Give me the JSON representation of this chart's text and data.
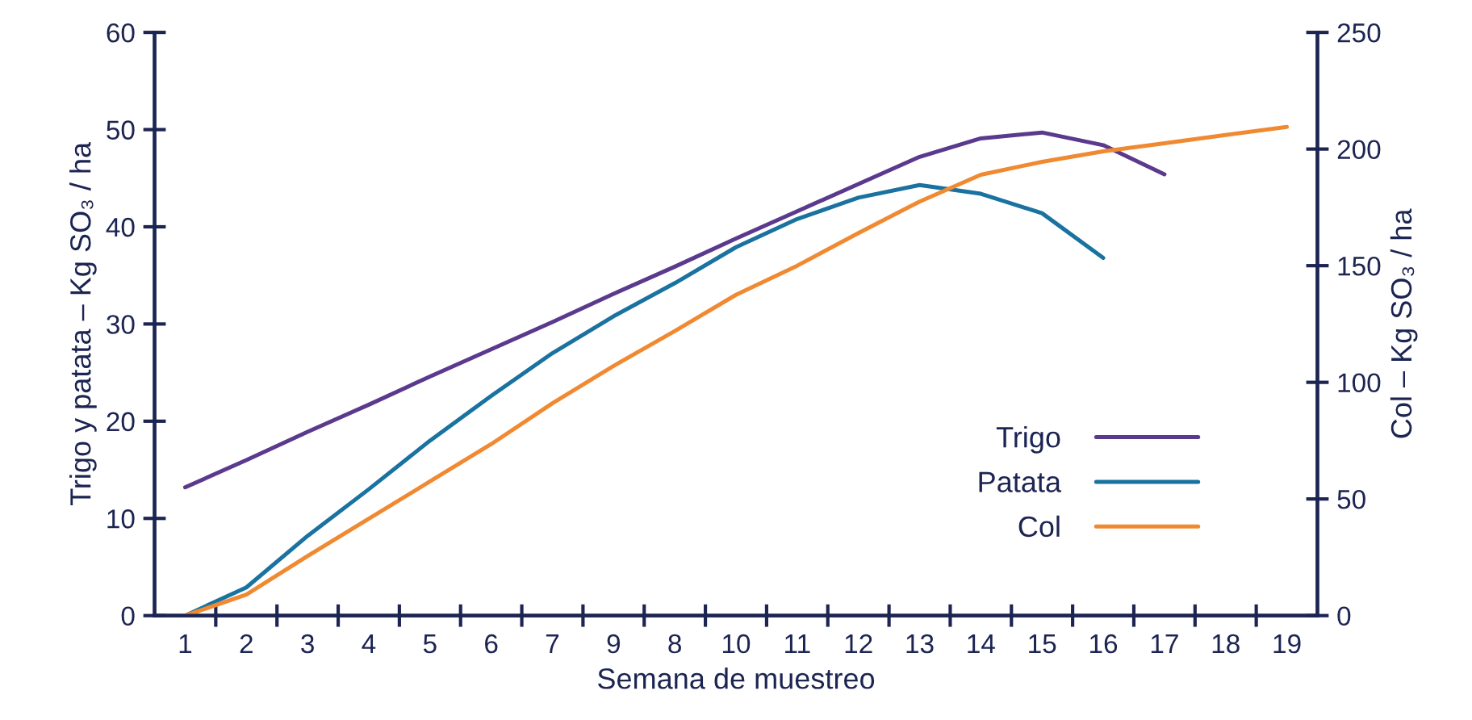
{
  "chart_data": {
    "type": "line",
    "xlabel": "Semana de muestreo",
    "ylabel": "Trigo y patata – Kg SO₃ / ha",
    "y2label": "Col – Kg SO₃ / ha",
    "categories": [
      "1",
      "2",
      "3",
      "4",
      "5",
      "6",
      "7",
      "9",
      "8",
      "10",
      "11",
      "12",
      "13",
      "14",
      "15",
      "16",
      "17",
      "18",
      "19"
    ],
    "ylim": [
      0,
      60
    ],
    "yticks": [
      0,
      10,
      20,
      30,
      40,
      50,
      60
    ],
    "y2lim": [
      0,
      250
    ],
    "y2ticks": [
      0,
      50,
      100,
      150,
      200,
      250
    ],
    "legend": "bottom right",
    "marker": "none",
    "line_style": "solid",
    "series": [
      {
        "name": "Trigo",
        "color": "#5b3a8e",
        "values": [
          13.2,
          16.0,
          18.9,
          21.7,
          24.6,
          27.4,
          30.2,
          33.1,
          35.9,
          38.8,
          41.6,
          44.4,
          47.2,
          49.1,
          49.7,
          48.4,
          45.4,
          null,
          null
        ]
      },
      {
        "name": "Patata",
        "color": "#1a72a0",
        "values": [
          0,
          2.9,
          8.2,
          13.0,
          18.0,
          22.6,
          27.0,
          30.8,
          34.2,
          37.9,
          40.8,
          43.0,
          44.3,
          43.4,
          41.4,
          36.8,
          null,
          null,
          null
        ]
      },
      {
        "name": "Col",
        "color": "#f08a32",
        "axis": "y2",
        "values": [
          0,
          9,
          25.5,
          41.5,
          57.5,
          73.5,
          91,
          107,
          122,
          137.5,
          150,
          164,
          177.5,
          189,
          194.5,
          199,
          202.5,
          206,
          209.5
        ]
      }
    ]
  }
}
